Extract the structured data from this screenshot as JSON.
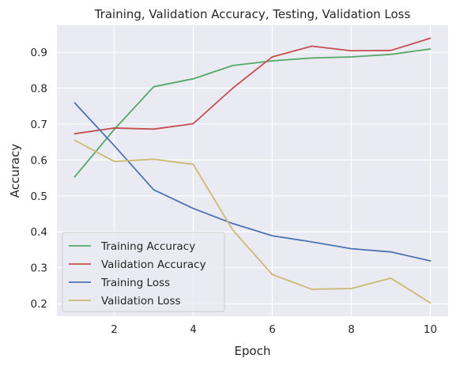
{
  "chart_data": {
    "type": "line",
    "title": "Training, Validation Accuracy, Testing, Validation Loss",
    "xlabel": "Epoch",
    "ylabel": "Accuracy",
    "x": [
      1,
      2,
      3,
      4,
      5,
      6,
      7,
      8,
      9,
      10
    ],
    "xlim": [
      0.55,
      10.45
    ],
    "ylim": [
      0.165,
      0.975
    ],
    "xticks": [
      2,
      4,
      6,
      8,
      10
    ],
    "yticks": [
      0.2,
      0.3,
      0.4,
      0.5,
      0.6,
      0.7,
      0.8,
      0.9
    ],
    "ytick_labels": [
      "0.2",
      "0.3",
      "0.4",
      "0.5",
      "0.6",
      "0.7",
      "0.8",
      "0.9"
    ],
    "grid": true,
    "legend_position": "lower-left",
    "background": "#eaeaf2",
    "series": [
      {
        "name": "Training Accuracy",
        "color": "#55a868",
        "values": [
          0.553,
          0.685,
          0.804,
          0.826,
          0.863,
          0.876,
          0.884,
          0.887,
          0.894,
          0.909
        ]
      },
      {
        "name": "Validation Accuracy",
        "color": "#c44e52",
        "values": [
          0.673,
          0.689,
          0.686,
          0.701,
          0.8,
          0.887,
          0.917,
          0.904,
          0.905,
          0.939
        ]
      },
      {
        "name": "Training Loss",
        "color": "#4c72b0",
        "values": [
          0.759,
          0.64,
          0.517,
          0.465,
          0.423,
          0.389,
          0.372,
          0.353,
          0.344,
          0.319
        ]
      },
      {
        "name": "Validation Loss",
        "color": "#ccb974",
        "values": [
          0.655,
          0.596,
          0.602,
          0.588,
          0.405,
          0.281,
          0.24,
          0.242,
          0.271,
          0.202
        ]
      }
    ]
  }
}
